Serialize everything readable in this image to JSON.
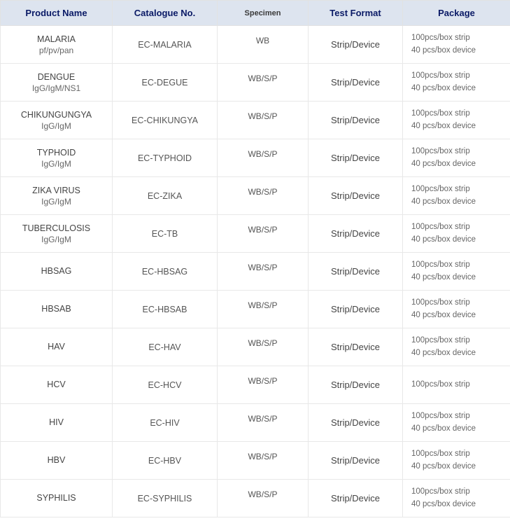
{
  "table": {
    "header_bg": "#dde4ef",
    "header_color": "#0a1a66",
    "border_color": "#e8e8e8",
    "columns": [
      {
        "label": "Product Name",
        "class": ""
      },
      {
        "label": "Catalogue No.",
        "class": ""
      },
      {
        "label": "Specimen",
        "class": "specimen-header"
      },
      {
        "label": "Test Format",
        "class": ""
      },
      {
        "label": "Package",
        "class": ""
      }
    ],
    "rows": [
      {
        "product_main": "MALARIA",
        "product_sub": "pf/pv/pan",
        "catalogue": "EC-MALARIA",
        "specimen": "WB",
        "format": "Strip/Device",
        "package1": "100pcs/box strip",
        "package2": "40 pcs/box device"
      },
      {
        "product_main": "DENGUE",
        "product_sub": "IgG/IgM/NS1",
        "catalogue": "EC-DEGUE",
        "specimen": "WB/S/P",
        "format": "Strip/Device",
        "package1": "100pcs/box strip",
        "package2": "40 pcs/box device"
      },
      {
        "product_main": "CHIKUNGUNGYA",
        "product_sub": "IgG/IgM",
        "catalogue": "EC-CHIKUNGYA",
        "specimen": "WB/S/P",
        "format": "Strip/Device",
        "package1": "100pcs/box strip",
        "package2": "40 pcs/box device"
      },
      {
        "product_main": "TYPHOID",
        "product_sub": "IgG/IgM",
        "catalogue": "EC-TYPHOID",
        "specimen": "WB/S/P",
        "format": "Strip/Device",
        "package1": "100pcs/box strip",
        "package2": "40 pcs/box device"
      },
      {
        "product_main": "ZIKA VIRUS",
        "product_sub": "IgG/IgM",
        "catalogue": "EC-ZIKA",
        "specimen": "WB/S/P",
        "format": "Strip/Device",
        "package1": "100pcs/box strip",
        "package2": "40 pcs/box device"
      },
      {
        "product_main": "TUBERCULOSIS",
        "product_sub": "IgG/IgM",
        "catalogue": "EC-TB",
        "specimen": "WB/S/P",
        "format": "Strip/Device",
        "package1": "100pcs/box strip",
        "package2": "40 pcs/box device"
      },
      {
        "product_main": "HBSAG",
        "product_sub": "",
        "catalogue": "EC-HBSAG",
        "specimen": "WB/S/P",
        "format": "Strip/Device",
        "package1": "100pcs/box strip",
        "package2": "40 pcs/box device"
      },
      {
        "product_main": "HBSAB",
        "product_sub": "",
        "catalogue": "EC-HBSAB",
        "specimen": "WB/S/P",
        "format": "Strip/Device",
        "package1": "100pcs/box strip",
        "package2": "40 pcs/box device"
      },
      {
        "product_main": "HAV",
        "product_sub": "",
        "catalogue": "EC-HAV",
        "specimen": "WB/S/P",
        "format": "Strip/Device",
        "package1": "100pcs/box strip",
        "package2": "40 pcs/box device"
      },
      {
        "product_main": "HCV",
        "product_sub": "",
        "catalogue": "EC-HCV",
        "specimen": "WB/S/P",
        "format": "Strip/Device",
        "package1": "100pcs/box strip",
        "package2": ""
      },
      {
        "product_main": "HIV",
        "product_sub": "",
        "catalogue": "EC-HIV",
        "specimen": "WB/S/P",
        "format": "Strip/Device",
        "package1": "100pcs/box strip",
        "package2": "40 pcs/box device"
      },
      {
        "product_main": "HBV",
        "product_sub": "",
        "catalogue": "EC-HBV",
        "specimen": "WB/S/P",
        "format": "Strip/Device",
        "package1": "100pcs/box strip",
        "package2": "40 pcs/box device"
      },
      {
        "product_main": "SYPHILIS",
        "product_sub": "",
        "catalogue": "EC-SYPHILIS",
        "specimen": "WB/S/P",
        "format": "Strip/Device",
        "package1": "100pcs/box strip",
        "package2": "40 pcs/box device"
      }
    ]
  }
}
